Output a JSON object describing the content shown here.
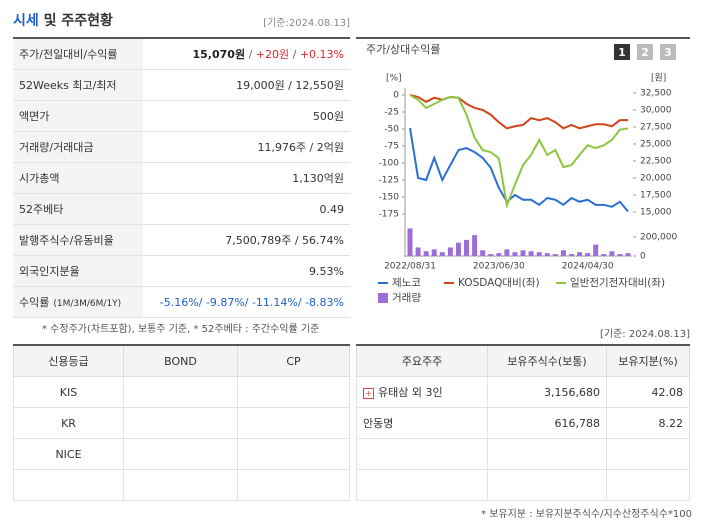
{
  "header": {
    "title_highlight": "시세",
    "title_rest": "및 주주현황",
    "date": "[기준:2024.08.13]"
  },
  "summary": {
    "rows": [
      {
        "label": "주가/전일대비/수익률",
        "parts": [
          {
            "text": "15,070원",
            "color": "#222",
            "bold": true
          },
          {
            "text": " / ",
            "color": "#666"
          },
          {
            "text": "+20원",
            "color": "#e0262d"
          },
          {
            "text": " / ",
            "color": "#666"
          },
          {
            "text": "+0.13%",
            "color": "#e0262d"
          }
        ]
      },
      {
        "label": "52Weeks 최고/최저",
        "parts": [
          {
            "text": "19,000원 / 12,550원"
          }
        ]
      },
      {
        "label": "액면가",
        "parts": [
          {
            "text": "500원"
          }
        ]
      },
      {
        "label": "거래량/거래대금",
        "parts": [
          {
            "text": "11,976주 / 2억원"
          }
        ]
      },
      {
        "label": "시가총액",
        "parts": [
          {
            "text": "1,130억원"
          }
        ]
      },
      {
        "label": "52주베타",
        "parts": [
          {
            "text": "0.49"
          }
        ]
      },
      {
        "label": "발행주식수/유동비율",
        "parts": [
          {
            "text": "7,500,789주 / 56.74%"
          }
        ]
      },
      {
        "label": "외국인지분율",
        "parts": [
          {
            "text": "9.53%"
          }
        ]
      },
      {
        "label": "수익률",
        "sublabel": "(1M/3M/6M/1Y)",
        "parts": [
          {
            "text": "-5.16%/ -9.87%/ -11.14%/ -8.83%",
            "color": "#1f5fc9"
          }
        ]
      }
    ]
  },
  "note": "* 수정주가(차트포함), 보통주 기준, * 52주베타 : 주간수익률 기준",
  "chart_data": {
    "type": "line",
    "title": "주가/상대수익률",
    "buttons": [
      "1",
      "2",
      "3"
    ],
    "y_unit": "[%]",
    "y2_unit": "[원]",
    "categories": [
      "2022/08/31",
      null,
      null,
      null,
      null,
      null,
      null,
      null,
      null,
      null,
      null,
      "2023/06/30",
      null,
      null,
      null,
      null,
      null,
      null,
      null,
      null,
      null,
      null,
      "2024/04/30",
      null,
      null,
      null,
      null,
      null
    ],
    "series": [
      {
        "name": "제노코",
        "color": "#2a6fd0",
        "axis": "y2",
        "values": [
          27350,
          20000,
          19700,
          22950,
          19700,
          21900,
          24100,
          24400,
          23800,
          22950,
          21500,
          18550,
          16500,
          17500,
          16800,
          16800,
          16050,
          17050,
          16800,
          16050,
          17050,
          16500,
          16800,
          16050,
          16050,
          15750,
          16500,
          15070
        ]
      },
      {
        "name": "KOSDAQ대비(좌)",
        "color": "#d2451e",
        "values": [
          0,
          -3,
          -10,
          -4,
          -7,
          -3,
          -4,
          -13,
          -19,
          -22,
          -29,
          -40,
          -49,
          -46,
          -44,
          -34,
          -37,
          -34,
          -40,
          -49,
          -44,
          -49,
          -46,
          -43,
          -43,
          -46,
          -37,
          -37
        ]
      },
      {
        "name": "일반전기전자대비(좌)",
        "color": "#8cc63f",
        "values": [
          0,
          -7,
          -19,
          -13,
          -7,
          -3,
          -4,
          -29,
          -63,
          -81,
          -84,
          -93,
          -162,
          -132,
          -103,
          -88,
          -66,
          -88,
          -81,
          -106,
          -103,
          -88,
          -74,
          -78,
          -74,
          -66,
          -51,
          -49
        ]
      }
    ],
    "volume": {
      "name": "거래량",
      "color": "#9c6fd6",
      "values": [
        290000,
        90000,
        50000,
        70000,
        40000,
        90000,
        140000,
        170000,
        220000,
        60000,
        20000,
        30000,
        70000,
        40000,
        60000,
        50000,
        40000,
        30000,
        20000,
        60000,
        20000,
        40000,
        30000,
        120000,
        20000,
        50000,
        20000,
        30000
      ]
    },
    "ylim": [
      -180,
      5
    ],
    "yticks": [
      0,
      -25,
      -50,
      -75,
      -100,
      -125,
      -150,
      -175
    ],
    "y2lim": [
      14200,
      32700
    ],
    "y2ticks": [
      {
        "value": 32500,
        "label": "32,500"
      },
      {
        "value": 30000,
        "label": "30,000"
      },
      {
        "value": 27500,
        "label": "27,500"
      },
      {
        "value": 25000,
        "label": "25,000"
      },
      {
        "value": 22500,
        "label": "22,500"
      },
      {
        "value": 20000,
        "label": "20,000"
      },
      {
        "value": 17500,
        "label": "17,500"
      },
      {
        "value": 15000,
        "label": "15,000"
      }
    ],
    "vlim": [
      0,
      300000
    ],
    "vticks": [
      {
        "value": 200000,
        "label": "200,000"
      },
      0
    ]
  },
  "date2": "[기준: 2024.08.13]",
  "credit": {
    "columns": [
      "신용등급",
      "BOND",
      "CP"
    ],
    "rows": [
      [
        "KIS"
      ],
      [
        "KR"
      ],
      [
        "NICE"
      ]
    ]
  },
  "holders": {
    "columns": [
      "주요주주",
      "보유주식수(보통)",
      "보유지분(%)"
    ],
    "rows": [
      [
        "유태삼 외 3인",
        "3,156,680",
        "42.08"
      ],
      [
        "안동명",
        "616,788",
        "8.22"
      ]
    ]
  },
  "footnote": "* 보유지분 : 보유지분주식수/지수산정주식수*100"
}
